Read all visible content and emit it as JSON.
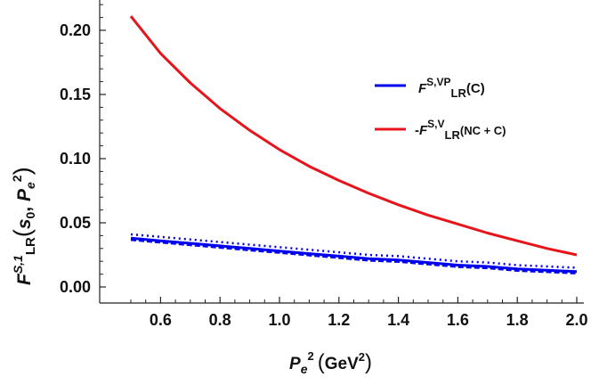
{
  "chart_data": {
    "type": "line",
    "xlim": [
      0.5,
      2.0
    ],
    "ylim": [
      0.0,
      0.22
    ],
    "x_ticks": [
      "0.6",
      "0.8",
      "1.0",
      "1.2",
      "1.4",
      "1.6",
      "1.8",
      "2.0"
    ],
    "y_ticks": [
      "0.00",
      "0.05",
      "0.10",
      "0.15",
      "0.20"
    ],
    "xlabel": {
      "base": "P",
      "sub": "e",
      "sup": "2",
      "unit_open": "(",
      "unit": "GeV",
      "unit_sup": "2",
      "unit_close": ")"
    },
    "ylabel": {
      "base": "F",
      "sup": "S,1",
      "sub": "LR",
      "args_open": "(",
      "arg1": "s",
      "arg1_sub": "0",
      "sep": ", ",
      "arg2": "P",
      "arg2_sub": "e",
      "arg2_sup": "2",
      "args_close": ")"
    },
    "legend_position": "top-right",
    "series": [
      {
        "name": "F^{S,VP}_{LR}(C)",
        "color": "#0000ee",
        "x": [
          0.5,
          0.6,
          0.7,
          0.8,
          0.9,
          1.0,
          1.1,
          1.2,
          1.3,
          1.4,
          1.5,
          1.6,
          1.7,
          1.8,
          1.9,
          2.0
        ],
        "y": [
          0.038,
          0.036,
          0.034,
          0.032,
          0.03,
          0.028,
          0.026,
          0.024,
          0.022,
          0.021,
          0.019,
          0.017,
          0.016,
          0.014,
          0.013,
          0.012
        ],
        "band_width": 0.003
      },
      {
        "name": "-F^{S,V}_{LR}(NC + C)",
        "color": "#e8141c",
        "x": [
          0.5,
          0.6,
          0.7,
          0.8,
          0.9,
          1.0,
          1.1,
          1.2,
          1.3,
          1.4,
          1.5,
          1.6,
          1.7,
          1.8,
          1.9,
          2.0
        ],
        "y": [
          0.211,
          0.182,
          0.159,
          0.139,
          0.122,
          0.107,
          0.094,
          0.083,
          0.073,
          0.064,
          0.056,
          0.049,
          0.042,
          0.036,
          0.03,
          0.025
        ]
      }
    ],
    "legend": [
      {
        "color": "#0000ee",
        "prefix": "",
        "base": "F",
        "sup": "S,VP",
        "sub": "LR",
        "arg": "(C)"
      },
      {
        "color": "#e8141c",
        "prefix": "-",
        "base": "F",
        "sup": "S,V",
        "sub": "LR",
        "arg": "(NC + C)"
      }
    ]
  }
}
